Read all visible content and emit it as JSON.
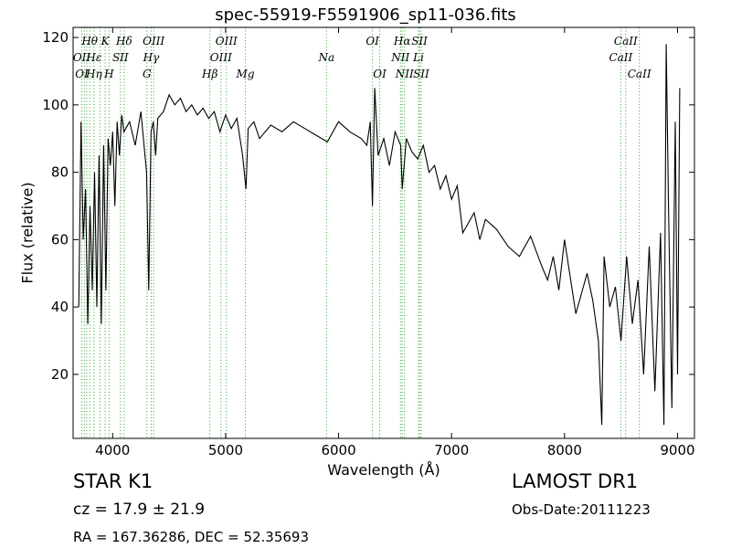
{
  "chart_data": {
    "type": "line",
    "title": "spec-55919-F5591906_sp11-036.fits",
    "xlabel": "Wavelength (Å)",
    "ylabel": "Flux (relative)",
    "xlim": [
      3650,
      9150
    ],
    "ylim": [
      1,
      123
    ],
    "xticks": [
      4000,
      5000,
      6000,
      7000,
      8000,
      9000
    ],
    "xtick_labels": [
      "4000",
      "5000",
      "6000",
      "7000",
      "8000",
      "9000"
    ],
    "yticks": [
      20,
      40,
      60,
      80,
      100,
      120
    ],
    "ytick_labels": [
      "20",
      "40",
      "60",
      "80",
      "100",
      "120"
    ],
    "grid": false,
    "line_color": "#000000",
    "marker_color": "#2ca02c",
    "series": [
      {
        "x": [
          3700,
          3720,
          3740,
          3760,
          3780,
          3800,
          3820,
          3840,
          3860,
          3880,
          3900,
          3920,
          3940,
          3960,
          3980,
          4000,
          4020,
          4040,
          4060,
          4080,
          4100,
          4150,
          4200,
          4250,
          4300,
          4320,
          4340,
          4360,
          4380,
          4400,
          4450,
          4500,
          4550,
          4600,
          4650,
          4700,
          4750,
          4800,
          4850,
          4900,
          4950,
          5000,
          5050,
          5100,
          5150,
          5180,
          5200,
          5250,
          5300,
          5400,
          5500,
          5600,
          5700,
          5800,
          5900,
          6000,
          6100,
          6200,
          6250,
          6280,
          6300,
          6320,
          6350,
          6400,
          6450,
          6500,
          6550,
          6563,
          6600,
          6650,
          6700,
          6750,
          6800,
          6850,
          6900,
          6950,
          7000,
          7050,
          7100,
          7200,
          7250,
          7300,
          7400,
          7500,
          7600,
          7700,
          7800,
          7850,
          7900,
          7950,
          8000,
          8100,
          8200,
          8250,
          8300,
          8330,
          8350,
          8400,
          8450,
          8500,
          8550,
          8600,
          8650,
          8700,
          8750,
          8800,
          8850,
          8880,
          8900,
          8920,
          8950,
          8980,
          9000,
          9020
        ],
        "y": [
          40,
          95,
          60,
          75,
          35,
          70,
          45,
          80,
          40,
          85,
          35,
          88,
          45,
          90,
          82,
          92,
          70,
          95,
          85,
          97,
          92,
          95,
          88,
          98,
          80,
          45,
          92,
          95,
          85,
          96,
          98,
          103,
          100,
          102,
          98,
          100,
          97,
          99,
          96,
          98,
          92,
          97,
          93,
          96,
          85,
          75,
          93,
          95,
          90,
          94,
          92,
          95,
          93,
          91,
          89,
          95,
          92,
          90,
          88,
          95,
          70,
          105,
          85,
          90,
          82,
          92,
          88,
          75,
          90,
          86,
          84,
          88,
          80,
          82,
          75,
          79,
          72,
          76,
          62,
          68,
          60,
          66,
          63,
          58,
          55,
          61,
          52,
          48,
          55,
          45,
          60,
          38,
          50,
          42,
          30,
          5,
          55,
          40,
          46,
          30,
          55,
          35,
          48,
          20,
          58,
          15,
          62,
          5,
          118,
          70,
          10,
          95,
          20,
          105
        ]
      }
    ],
    "line_labels": [
      {
        "text": "Hθ",
        "x": 3797,
        "row": 1
      },
      {
        "text": "K",
        "x": 3934,
        "row": 1
      },
      {
        "text": "Hδ",
        "x": 4102,
        "row": 1
      },
      {
        "text": "OIII",
        "x": 4363,
        "row": 1
      },
      {
        "text": "OII",
        "x": 3727,
        "row": 2
      },
      {
        "text": "Hε",
        "x": 3835,
        "row": 2
      },
      {
        "text": "SII",
        "x": 4069,
        "row": 2
      },
      {
        "text": "Hγ",
        "x": 4341,
        "row": 2
      },
      {
        "text": "OI",
        "x": 3727,
        "row": 3
      },
      {
        "text": "Hη",
        "x": 3835,
        "row": 3
      },
      {
        "text": "H",
        "x": 3968,
        "row": 3
      },
      {
        "text": "G",
        "x": 4304,
        "row": 3
      },
      {
        "text": "OIII",
        "x": 5007,
        "row": 1
      },
      {
        "text": "OIII",
        "x": 4959,
        "row": 2
      },
      {
        "text": "Hβ",
        "x": 4861,
        "row": 3
      },
      {
        "text": "Mg",
        "x": 5175,
        "row": 3
      },
      {
        "text": "Na",
        "x": 5893,
        "row": 2
      },
      {
        "text": "OI",
        "x": 6300,
        "row": 1
      },
      {
        "text": "OI",
        "x": 6364,
        "row": 3
      },
      {
        "text": "Hα",
        "x": 6563,
        "row": 1
      },
      {
        "text": "SII",
        "x": 6716,
        "row": 1
      },
      {
        "text": "NII",
        "x": 6548,
        "row": 2
      },
      {
        "text": "Li",
        "x": 6708,
        "row": 2
      },
      {
        "text": "NII",
        "x": 6584,
        "row": 3
      },
      {
        "text": "SII",
        "x": 6731,
        "row": 3
      },
      {
        "text": "CaII",
        "x": 8542,
        "row": 1
      },
      {
        "text": "CaII",
        "x": 8498,
        "row": 2
      },
      {
        "text": "CaII",
        "x": 8662,
        "row": 3
      }
    ],
    "marker_lines": [
      3727,
      3750,
      3771,
      3797,
      3835,
      3889,
      3934,
      3968,
      4069,
      4102,
      4304,
      4341,
      4363,
      4861,
      4959,
      5007,
      5175,
      5893,
      6300,
      6364,
      6548,
      6563,
      6584,
      6708,
      6716,
      6731,
      8498,
      8542,
      8662
    ]
  },
  "info": {
    "object": "STAR   K1",
    "cz": "cz = 17.9  ± 21.9",
    "radec": "RA = 167.36286, DEC = 52.35693",
    "survey": "LAMOST DR1",
    "obs_date": "Obs-Date:20111223"
  }
}
